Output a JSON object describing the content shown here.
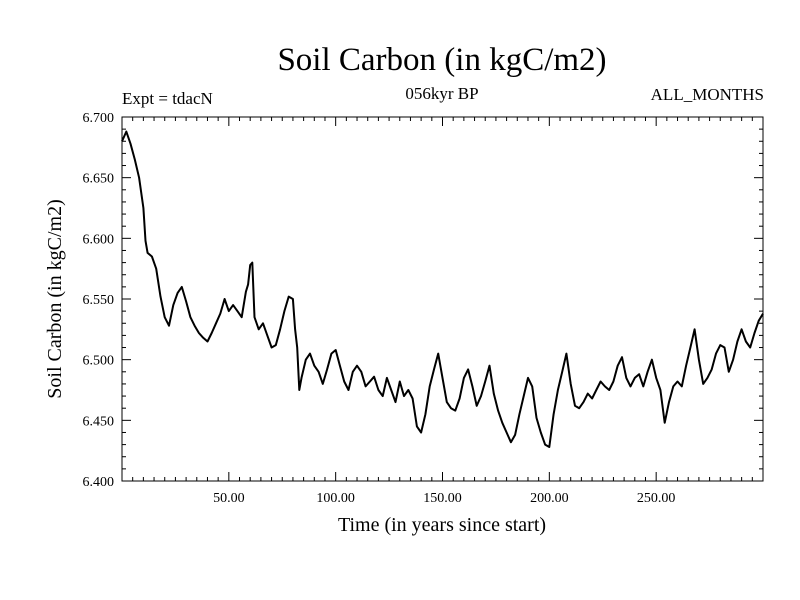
{
  "header": {
    "title": "Soil Carbon (in kgC/m2)",
    "experiment": "Expt = tdacN",
    "subtitle": "056kyr BP",
    "period": "ALL_MONTHS"
  },
  "chart_data": {
    "type": "line",
    "title": "Soil Carbon (in kgC/m2)",
    "xlabel": "Time (in years since start)",
    "ylabel": "Soil Carbon (in kgC/m2)",
    "xlim": [
      0,
      300
    ],
    "ylim": [
      6.4,
      6.7
    ],
    "x_ticks": [
      50,
      100,
      150,
      200,
      250
    ],
    "x_tick_labels": [
      "50.00",
      "100.00",
      "150.00",
      "200.00",
      "250.00"
    ],
    "y_ticks": [
      6.4,
      6.45,
      6.5,
      6.55,
      6.6,
      6.65,
      6.7
    ],
    "y_tick_labels": [
      "6.400",
      "6.450",
      "6.500",
      "6.550",
      "6.600",
      "6.650",
      "6.700"
    ],
    "grid": false,
    "series": [
      {
        "name": "Soil Carbon",
        "color": "#000000",
        "x": [
          0,
          2,
          4,
          6,
          8,
          10,
          11,
          12,
          14,
          16,
          18,
          20,
          22,
          24,
          26,
          28,
          30,
          32,
          34,
          36,
          38,
          40,
          42,
          44,
          46,
          48,
          50,
          52,
          54,
          56,
          58,
          59,
          60,
          61,
          62,
          64,
          66,
          68,
          70,
          72,
          74,
          76,
          78,
          80,
          81,
          82,
          83,
          84,
          86,
          88,
          90,
          92,
          94,
          96,
          98,
          100,
          102,
          104,
          106,
          108,
          110,
          112,
          114,
          116,
          118,
          120,
          122,
          124,
          126,
          128,
          130,
          132,
          134,
          136,
          138,
          140,
          142,
          144,
          146,
          148,
          150,
          152,
          154,
          156,
          158,
          160,
          162,
          164,
          166,
          168,
          170,
          172,
          174,
          176,
          178,
          180,
          182,
          184,
          186,
          188,
          190,
          192,
          194,
          196,
          198,
          200,
          202,
          204,
          206,
          208,
          210,
          212,
          214,
          216,
          218,
          220,
          222,
          224,
          226,
          228,
          230,
          232,
          234,
          236,
          238,
          240,
          242,
          244,
          246,
          248,
          250,
          252,
          254,
          256,
          258,
          260,
          262,
          264,
          266,
          268,
          270,
          272,
          274,
          276,
          278,
          280,
          282,
          284,
          286,
          288,
          290,
          292,
          294,
          296,
          298,
          300
        ],
        "values": [
          6.68,
          6.688,
          6.678,
          6.665,
          6.65,
          6.625,
          6.598,
          6.588,
          6.585,
          6.575,
          6.552,
          6.535,
          6.528,
          6.545,
          6.555,
          6.56,
          6.548,
          6.535,
          6.528,
          6.522,
          6.518,
          6.515,
          6.522,
          6.53,
          6.538,
          6.55,
          6.54,
          6.545,
          6.54,
          6.535,
          6.556,
          6.562,
          6.578,
          6.58,
          6.535,
          6.525,
          6.53,
          6.52,
          6.51,
          6.512,
          6.525,
          6.54,
          6.552,
          6.55,
          6.525,
          6.51,
          6.475,
          6.485,
          6.5,
          6.505,
          6.495,
          6.49,
          6.48,
          6.492,
          6.505,
          6.508,
          6.495,
          6.482,
          6.475,
          6.49,
          6.495,
          6.49,
          6.478,
          6.482,
          6.486,
          6.475,
          6.47,
          6.485,
          6.475,
          6.465,
          6.482,
          6.47,
          6.475,
          6.468,
          6.445,
          6.44,
          6.455,
          6.478,
          6.492,
          6.505,
          6.485,
          6.465,
          6.46,
          6.458,
          6.468,
          6.485,
          6.492,
          6.478,
          6.462,
          6.47,
          6.482,
          6.495,
          6.472,
          6.458,
          6.448,
          6.44,
          6.432,
          6.438,
          6.455,
          6.47,
          6.485,
          6.478,
          6.452,
          6.44,
          6.43,
          6.428,
          6.455,
          6.475,
          6.49,
          6.505,
          6.48,
          6.462,
          6.46,
          6.465,
          6.472,
          6.468,
          6.475,
          6.482,
          6.478,
          6.475,
          6.482,
          6.495,
          6.502,
          6.485,
          6.478,
          6.485,
          6.488,
          6.478,
          6.49,
          6.5,
          6.485,
          6.475,
          6.448,
          6.465,
          6.478,
          6.482,
          6.478,
          6.495,
          6.51,
          6.525,
          6.5,
          6.48,
          6.485,
          6.492,
          6.505,
          6.512,
          6.51,
          6.49,
          6.5,
          6.515,
          6.525,
          6.515,
          6.51,
          6.522,
          6.532,
          6.538
        ]
      }
    ]
  }
}
